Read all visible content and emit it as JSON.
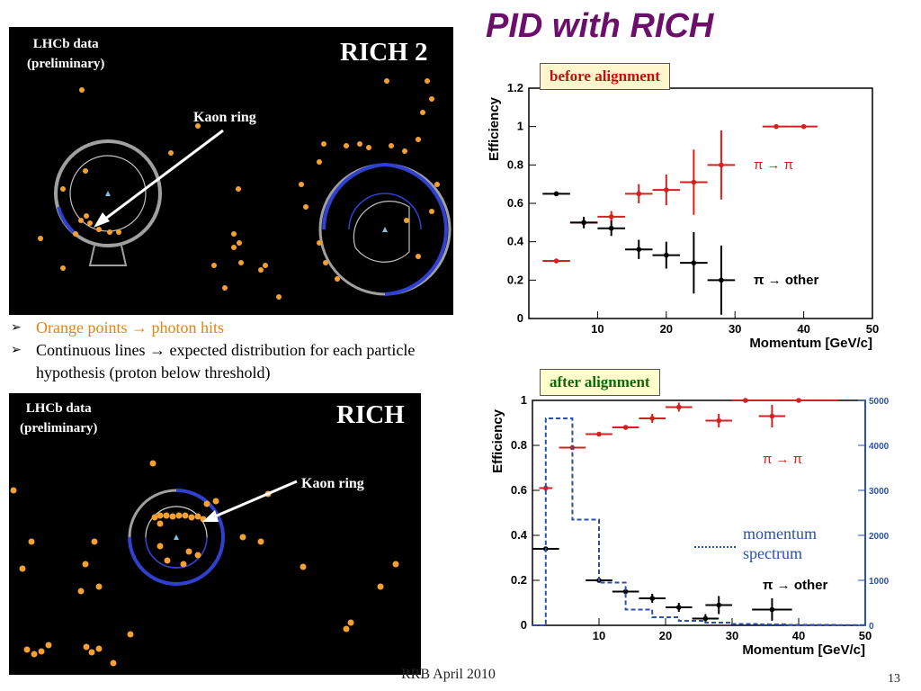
{
  "title": "PID with RICH",
  "colors": {
    "title": "#6b0f6b",
    "pi_to_pi": "#d42020",
    "pi_to_other": "#000000",
    "momentum_spectrum": "#2a52a8",
    "photon_hits": "#f5a030",
    "expected_ring": "#3040d0",
    "before_tag_bg": "#fff6cc",
    "after_tag_bg": "#ffffcc"
  },
  "top_panel": {
    "data_label_line1": "LHCb data",
    "data_label_line2": "(preliminary)",
    "detector": "RICH 2",
    "kaon_label": "Kaon ring"
  },
  "bottom_panel": {
    "data_label_line1": "LHCb data",
    "data_label_line2": "(preliminary)",
    "detector": "RICH",
    "kaon_label": "Kaon ring"
  },
  "bullets": [
    {
      "prefix": "Orange points ",
      "suffix": " photon hits",
      "arrow": "→"
    },
    {
      "prefix": "Continuous lines ",
      "suffix": " expected distribution for each particle hypothesis (proton below threshold)",
      "arrow": "→"
    }
  ],
  "footer": {
    "left": "RRB April 2010",
    "page": "13"
  },
  "chart_data": [
    {
      "type": "scatter",
      "tag": "before alignment",
      "xlabel": "Momentum [GeV/c]",
      "ylabel": "Efficiency",
      "xlim": [
        0,
        50
      ],
      "ylim": [
        0,
        1.2
      ],
      "xticks": [
        "10",
        "20",
        "30",
        "40",
        "50"
      ],
      "yticks": [
        "0",
        "0.2",
        "0.4",
        "0.6",
        "0.8",
        "1",
        "1.2"
      ],
      "series": [
        {
          "name": "π → π",
          "points": [
            {
              "x": 4,
              "y": 0.3,
              "xerr": 2,
              "yerr": 0.01
            },
            {
              "x": 8,
              "y": 0.5,
              "xerr": 2,
              "yerr": 0.02
            },
            {
              "x": 12,
              "y": 0.53,
              "xerr": 2,
              "yerr": 0.03
            },
            {
              "x": 16,
              "y": 0.65,
              "xerr": 2,
              "yerr": 0.05
            },
            {
              "x": 20,
              "y": 0.67,
              "xerr": 2,
              "yerr": 0.08
            },
            {
              "x": 24,
              "y": 0.71,
              "xerr": 2,
              "yerr": 0.17
            },
            {
              "x": 28,
              "y": 0.8,
              "xerr": 2,
              "yerr": 0.18
            },
            {
              "x": 36,
              "y": 1.0,
              "xerr": 2,
              "yerr": 0.0
            },
            {
              "x": 40,
              "y": 1.0,
              "xerr": 2,
              "yerr": 0.0
            }
          ]
        },
        {
          "name": "π → other",
          "points": [
            {
              "x": 4,
              "y": 0.65,
              "xerr": 2,
              "yerr": 0.01
            },
            {
              "x": 8,
              "y": 0.5,
              "xerr": 2,
              "yerr": 0.03
            },
            {
              "x": 12,
              "y": 0.47,
              "xerr": 2,
              "yerr": 0.04
            },
            {
              "x": 16,
              "y": 0.36,
              "xerr": 2,
              "yerr": 0.05
            },
            {
              "x": 20,
              "y": 0.33,
              "xerr": 2,
              "yerr": 0.07
            },
            {
              "x": 24,
              "y": 0.29,
              "xerr": 2,
              "yerr": 0.16
            },
            {
              "x": 28,
              "y": 0.2,
              "xerr": 2,
              "yerr": 0.18
            }
          ]
        }
      ]
    },
    {
      "type": "scatter",
      "tag": "after alignment",
      "xlabel": "Momentum [GeV/c]",
      "ylabel": "Efficiency",
      "xlim": [
        0,
        50
      ],
      "ylim": [
        0,
        1.0
      ],
      "xticks": [
        "10",
        "20",
        "30",
        "40",
        "50"
      ],
      "yticks": [
        "0",
        "0.2",
        "0.4",
        "0.6",
        "0.8",
        "1"
      ],
      "right_axis": {
        "ticks": [
          "0",
          "1000",
          "2000",
          "3000",
          "4000",
          "5000"
        ],
        "lim": [
          0,
          5000
        ]
      },
      "annotation": "momentum spectrum",
      "series": [
        {
          "name": "π → π",
          "points": [
            {
              "x": 2,
              "y": 0.61,
              "xerr": 1,
              "yerr": 0.01
            },
            {
              "x": 6,
              "y": 0.79,
              "xerr": 2,
              "yerr": 0.01
            },
            {
              "x": 10,
              "y": 0.85,
              "xerr": 2,
              "yerr": 0.01
            },
            {
              "x": 14,
              "y": 0.88,
              "xerr": 2,
              "yerr": 0.01
            },
            {
              "x": 18,
              "y": 0.92,
              "xerr": 2,
              "yerr": 0.02
            },
            {
              "x": 22,
              "y": 0.97,
              "xerr": 2,
              "yerr": 0.02
            },
            {
              "x": 28,
              "y": 0.91,
              "xerr": 2,
              "yerr": 0.03
            },
            {
              "x": 32,
              "y": 1.0,
              "xerr": 2,
              "yerr": 0.0
            },
            {
              "x": 36,
              "y": 0.93,
              "xerr": 2,
              "yerr": 0.05
            },
            {
              "x": 40,
              "y": 1.0,
              "xerr": 6,
              "yerr": 0.0
            }
          ]
        },
        {
          "name": "π → other",
          "points": [
            {
              "x": 2,
              "y": 0.34,
              "xerr": 2,
              "yerr": 0.01
            },
            {
              "x": 10,
              "y": 0.2,
              "xerr": 2,
              "yerr": 0.01
            },
            {
              "x": 14,
              "y": 0.15,
              "xerr": 2,
              "yerr": 0.01
            },
            {
              "x": 18,
              "y": 0.12,
              "xerr": 2,
              "yerr": 0.02
            },
            {
              "x": 22,
              "y": 0.08,
              "xerr": 2,
              "yerr": 0.02
            },
            {
              "x": 26,
              "y": 0.03,
              "xerr": 2,
              "yerr": 0.02
            },
            {
              "x": 28,
              "y": 0.09,
              "xerr": 2,
              "yerr": 0.04
            },
            {
              "x": 36,
              "y": 0.07,
              "xerr": 3,
              "yerr": 0.05
            }
          ]
        },
        {
          "name": "momentum spectrum",
          "step": true,
          "bins": [
            0,
            2,
            6,
            10,
            14,
            18,
            22,
            26,
            30,
            34,
            38,
            42,
            46,
            50
          ],
          "counts": [
            0,
            4600,
            2350,
            950,
            350,
            180,
            100,
            60,
            30,
            20,
            10,
            10,
            5
          ]
        }
      ]
    }
  ]
}
